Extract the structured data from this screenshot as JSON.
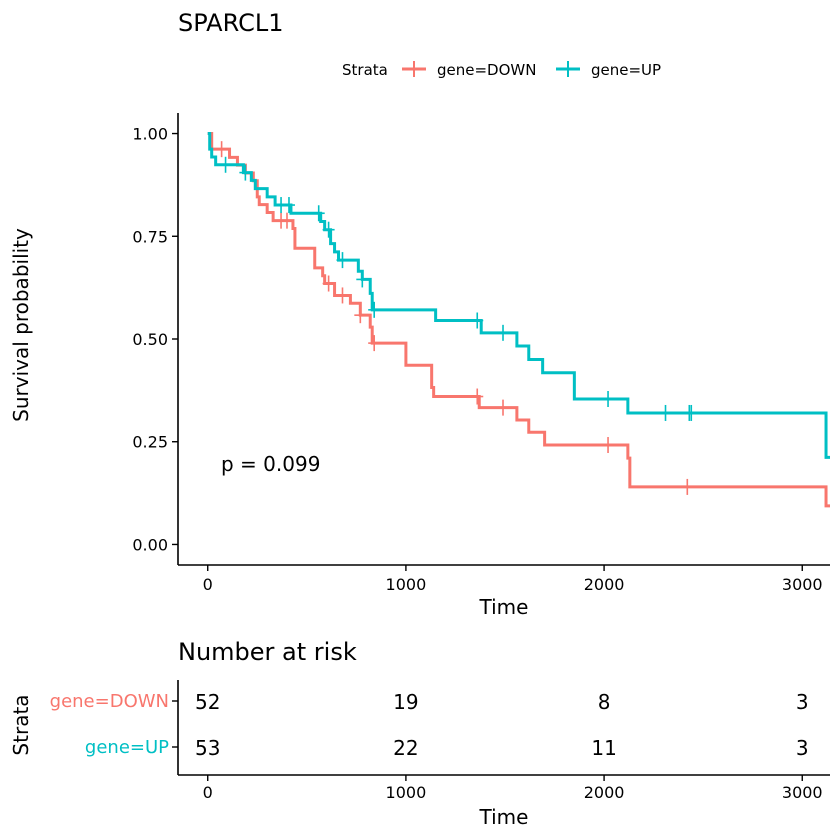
{
  "chart_data": {
    "type": "line",
    "title": "SPARCL1",
    "xlabel": "Time",
    "ylabel": "Survival probability",
    "xlim": [
      -150,
      3140
    ],
    "ylim": [
      -0.05,
      1.05
    ],
    "x_ticks": [
      0,
      1000,
      2000,
      3000
    ],
    "x_tick_labels": [
      "0",
      "1000",
      "2000",
      "3000"
    ],
    "y_ticks": [
      0,
      0.25,
      0.5,
      0.75,
      1.0
    ],
    "y_tick_labels": [
      "0.00",
      "0.25",
      "0.50",
      "0.75",
      "1.00"
    ],
    "legend": {
      "title": "Strata",
      "position": "top",
      "items": [
        "gene=DOWN",
        "gene=UP"
      ]
    },
    "annotation": "p = 0.099",
    "grid": false,
    "series": [
      {
        "name": "gene=DOWN",
        "color": "#F8766D",
        "steps": [
          [
            0,
            1.0
          ],
          [
            20,
            0.962
          ],
          [
            50,
            0.962
          ],
          [
            110,
            0.942
          ],
          [
            150,
            0.923
          ],
          [
            190,
            0.904
          ],
          [
            230,
            0.885
          ],
          [
            250,
            0.846
          ],
          [
            260,
            0.827
          ],
          [
            300,
            0.808
          ],
          [
            330,
            0.788
          ],
          [
            430,
            0.769
          ],
          [
            440,
            0.721
          ],
          [
            540,
            0.673
          ],
          [
            580,
            0.654
          ],
          [
            590,
            0.635
          ],
          [
            640,
            0.606
          ],
          [
            720,
            0.587
          ],
          [
            770,
            0.558
          ],
          [
            820,
            0.529
          ],
          [
            830,
            0.49
          ],
          [
            1000,
            0.436
          ],
          [
            1130,
            0.382
          ],
          [
            1140,
            0.36
          ],
          [
            1370,
            0.333
          ],
          [
            1560,
            0.303
          ],
          [
            1620,
            0.273
          ],
          [
            1700,
            0.242
          ],
          [
            2120,
            0.21
          ],
          [
            2130,
            0.14
          ],
          [
            3120,
            0.094
          ]
        ],
        "end": 3140,
        "censor": [
          [
            70,
            0.962
          ],
          [
            370,
            0.788
          ],
          [
            400,
            0.788
          ],
          [
            610,
            0.635
          ],
          [
            680,
            0.606
          ],
          [
            770,
            0.558
          ],
          [
            840,
            0.49
          ],
          [
            1360,
            0.36
          ],
          [
            1490,
            0.333
          ],
          [
            2020,
            0.242
          ],
          [
            2420,
            0.14
          ]
        ]
      },
      {
        "name": "gene=UP",
        "color": "#00BFC4",
        "steps": [
          [
            0,
            1.0
          ],
          [
            10,
            0.962
          ],
          [
            20,
            0.943
          ],
          [
            40,
            0.924
          ],
          [
            180,
            0.905
          ],
          [
            220,
            0.886
          ],
          [
            240,
            0.866
          ],
          [
            300,
            0.846
          ],
          [
            340,
            0.826
          ],
          [
            420,
            0.806
          ],
          [
            570,
            0.786
          ],
          [
            590,
            0.766
          ],
          [
            620,
            0.732
          ],
          [
            640,
            0.712
          ],
          [
            660,
            0.692
          ],
          [
            760,
            0.665
          ],
          [
            780,
            0.645
          ],
          [
            820,
            0.611
          ],
          [
            830,
            0.571
          ],
          [
            1150,
            0.545
          ],
          [
            1380,
            0.515
          ],
          [
            1560,
            0.483
          ],
          [
            1620,
            0.45
          ],
          [
            1690,
            0.418
          ],
          [
            1850,
            0.354
          ],
          [
            2120,
            0.32
          ],
          [
            3120,
            0.212
          ]
        ],
        "end": 3140,
        "censor": [
          [
            90,
            0.924
          ],
          [
            190,
            0.905
          ],
          [
            370,
            0.826
          ],
          [
            410,
            0.826
          ],
          [
            560,
            0.806
          ],
          [
            610,
            0.766
          ],
          [
            680,
            0.692
          ],
          [
            780,
            0.645
          ],
          [
            840,
            0.571
          ],
          [
            1360,
            0.545
          ],
          [
            1490,
            0.515
          ],
          [
            2020,
            0.354
          ],
          [
            2310,
            0.32
          ],
          [
            2430,
            0.32
          ],
          [
            2440,
            0.32
          ]
        ]
      }
    ],
    "risk_table": {
      "title": "Number at risk",
      "xlabel": "Time",
      "ylabel": "Strata",
      "times": [
        0,
        1000,
        2000,
        3000
      ],
      "rows": [
        {
          "label": "gene=DOWN",
          "color": "#F8766D",
          "counts": [
            "52",
            "19",
            "8",
            "3"
          ]
        },
        {
          "label": "gene=UP",
          "color": "#00BFC4",
          "counts": [
            "53",
            "22",
            "11",
            "3"
          ]
        }
      ]
    }
  }
}
